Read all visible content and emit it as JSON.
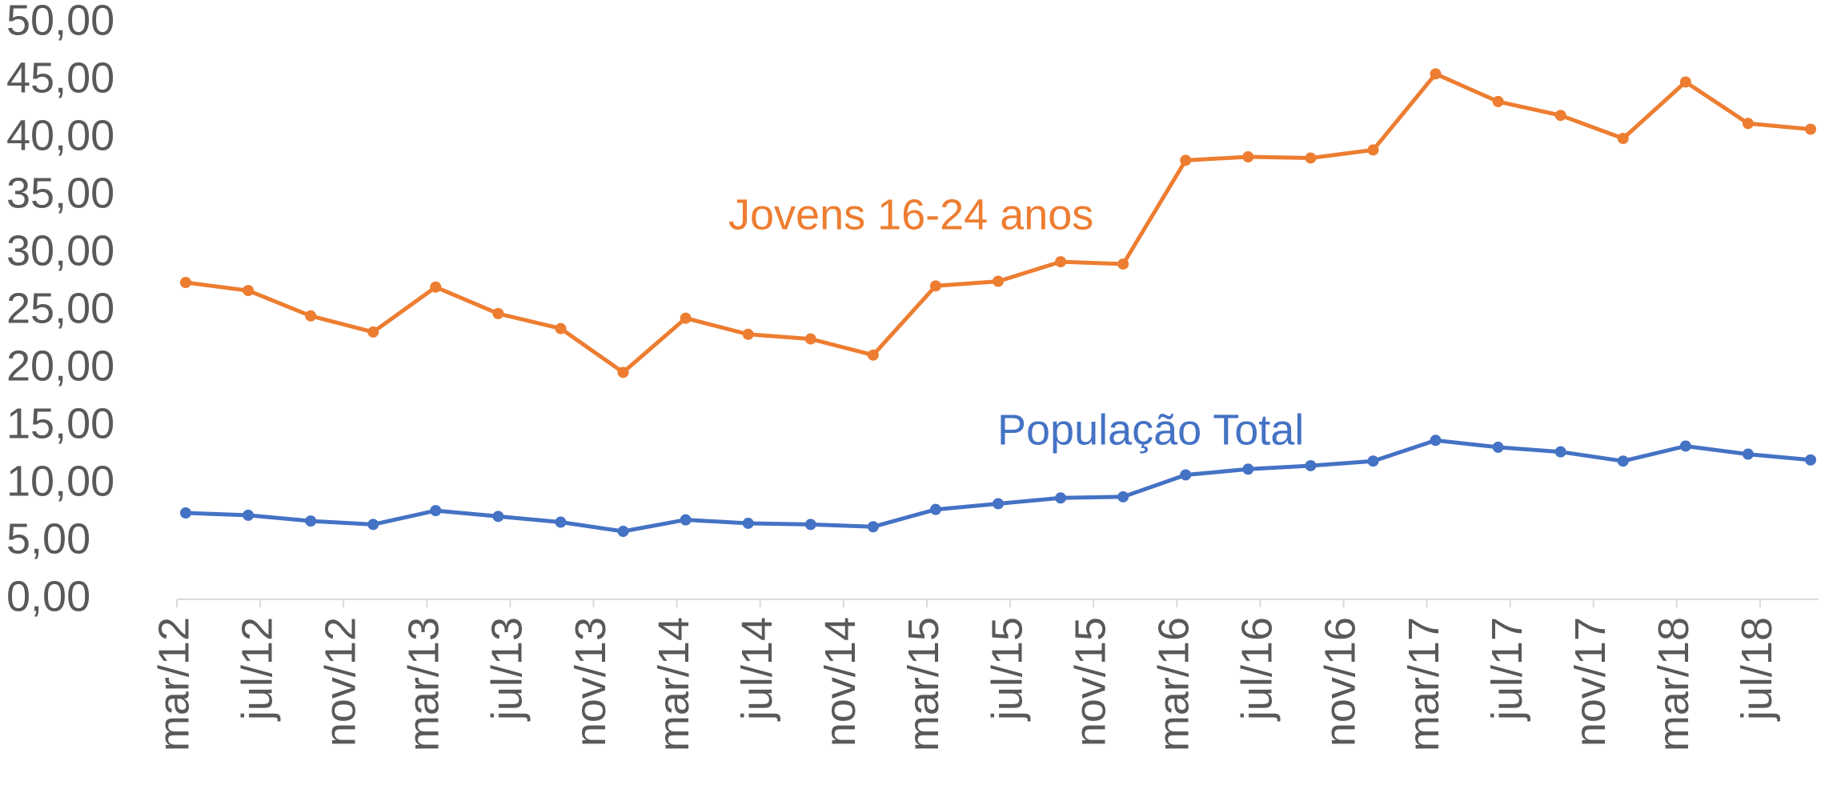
{
  "chart_data": {
    "type": "line",
    "x": [
      "2012-03",
      "2012-06",
      "2012-09",
      "2012-12",
      "2013-03",
      "2013-06",
      "2013-09",
      "2013-12",
      "2014-03",
      "2014-06",
      "2014-09",
      "2014-12",
      "2015-03",
      "2015-06",
      "2015-09",
      "2015-12",
      "2016-03",
      "2016-06",
      "2016-09",
      "2016-12",
      "2017-03",
      "2017-06",
      "2017-09",
      "2017-12",
      "2018-03",
      "2018-06",
      "2018-09"
    ],
    "series": [
      {
        "name": "Jovens 16-24 anos",
        "color": "#ed7d31",
        "values": [
          27.5,
          26.8,
          24.6,
          23.2,
          27.1,
          24.8,
          23.5,
          19.7,
          24.4,
          23.0,
          22.6,
          21.2,
          27.2,
          27.6,
          29.3,
          29.1,
          38.1,
          38.4,
          38.3,
          39.0,
          45.6,
          43.2,
          42.0,
          40.0,
          44.9,
          41.3,
          40.8
        ]
      },
      {
        "name": "População Total",
        "color": "#4472c4",
        "values": [
          7.5,
          7.3,
          6.8,
          6.5,
          7.7,
          7.2,
          6.7,
          5.9,
          6.9,
          6.6,
          6.5,
          6.3,
          7.8,
          8.3,
          8.8,
          8.9,
          10.8,
          11.3,
          11.6,
          12.0,
          13.8,
          13.2,
          12.8,
          12.0,
          13.3,
          12.6,
          12.1
        ]
      }
    ],
    "xlim": [
      "2012-03",
      "2018-09"
    ],
    "xticks": [
      {
        "value": "2012-03",
        "label": "mar/12"
      },
      {
        "value": "2012-07",
        "label": "jul/12"
      },
      {
        "value": "2012-11",
        "label": "nov/12"
      },
      {
        "value": "2013-03",
        "label": "mar/13"
      },
      {
        "value": "2013-07",
        "label": "jul/13"
      },
      {
        "value": "2013-11",
        "label": "nov/13"
      },
      {
        "value": "2014-03",
        "label": "mar/14"
      },
      {
        "value": "2014-07",
        "label": "jul/14"
      },
      {
        "value": "2014-11",
        "label": "nov/14"
      },
      {
        "value": "2015-03",
        "label": "mar/15"
      },
      {
        "value": "2015-07",
        "label": "jul/15"
      },
      {
        "value": "2015-11",
        "label": "nov/15"
      },
      {
        "value": "2016-03",
        "label": "mar/16"
      },
      {
        "value": "2016-07",
        "label": "jul/16"
      },
      {
        "value": "2016-11",
        "label": "nov/16"
      },
      {
        "value": "2017-03",
        "label": "mar/17"
      },
      {
        "value": "2017-07",
        "label": "jul/17"
      },
      {
        "value": "2017-11",
        "label": "nov/17"
      },
      {
        "value": "2018-03",
        "label": "mar/18"
      },
      {
        "value": "2018-07",
        "label": "jul/18"
      }
    ],
    "ylim": [
      0,
      50
    ],
    "yticks": [
      {
        "value": 0,
        "label": "0,00"
      },
      {
        "value": 5,
        "label": "5,00"
      },
      {
        "value": 10,
        "label": "10,00"
      },
      {
        "value": 15,
        "label": "15,00"
      },
      {
        "value": 20,
        "label": "20,00"
      },
      {
        "value": 25,
        "label": "25,00"
      },
      {
        "value": 30,
        "label": "30,00"
      },
      {
        "value": 35,
        "label": "35,00"
      },
      {
        "value": 40,
        "label": "40,00"
      },
      {
        "value": 45,
        "label": "45,00"
      },
      {
        "value": 50,
        "label": "50,00"
      }
    ],
    "grid": false
  }
}
